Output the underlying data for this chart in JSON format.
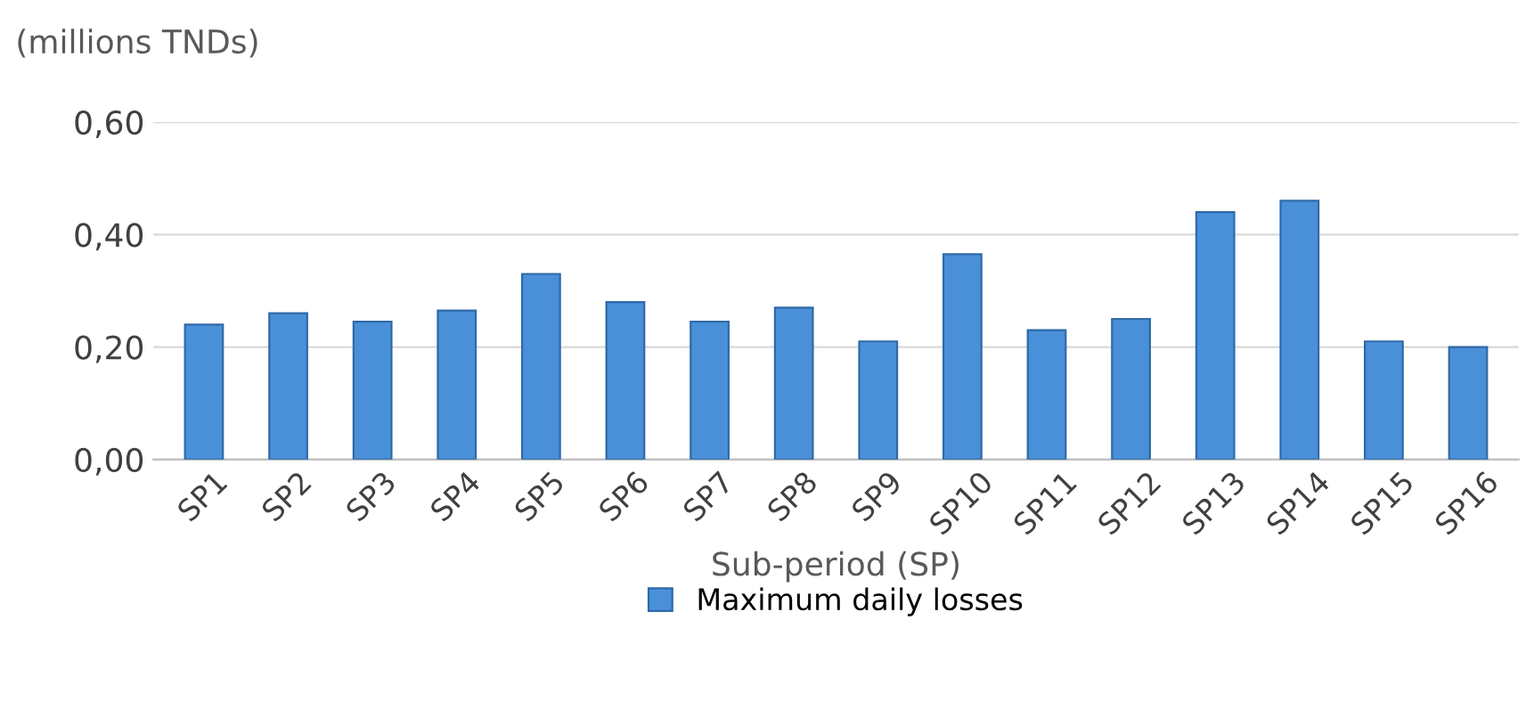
{
  "chart_data": {
    "type": "bar",
    "ylabel": "(millions TNDs)",
    "xlabel": "Sub-period (SP)",
    "categories": [
      "SP1",
      "SP2",
      "SP3",
      "SP4",
      "SP5",
      "SP6",
      "SP7",
      "SP8",
      "SP9",
      "SP10",
      "SP11",
      "SP12",
      "SP13",
      "SP14",
      "SP15",
      "SP16"
    ],
    "series": [
      {
        "name": "Maximum daily losses",
        "color": "#4a90d9",
        "values": [
          0.24,
          0.26,
          0.245,
          0.265,
          0.33,
          0.28,
          0.245,
          0.27,
          0.21,
          0.365,
          0.23,
          0.25,
          0.44,
          0.46,
          0.21,
          0.2
        ]
      }
    ],
    "ylim": [
      0,
      0.6
    ],
    "yticks": [
      {
        "value": 0,
        "label": "0,00"
      },
      {
        "value": 0.2,
        "label": "0,20"
      },
      {
        "value": 0.4,
        "label": "0,40"
      },
      {
        "value": 0.6,
        "label": "0,60"
      }
    ],
    "grid": "y",
    "legend": "bottom"
  }
}
